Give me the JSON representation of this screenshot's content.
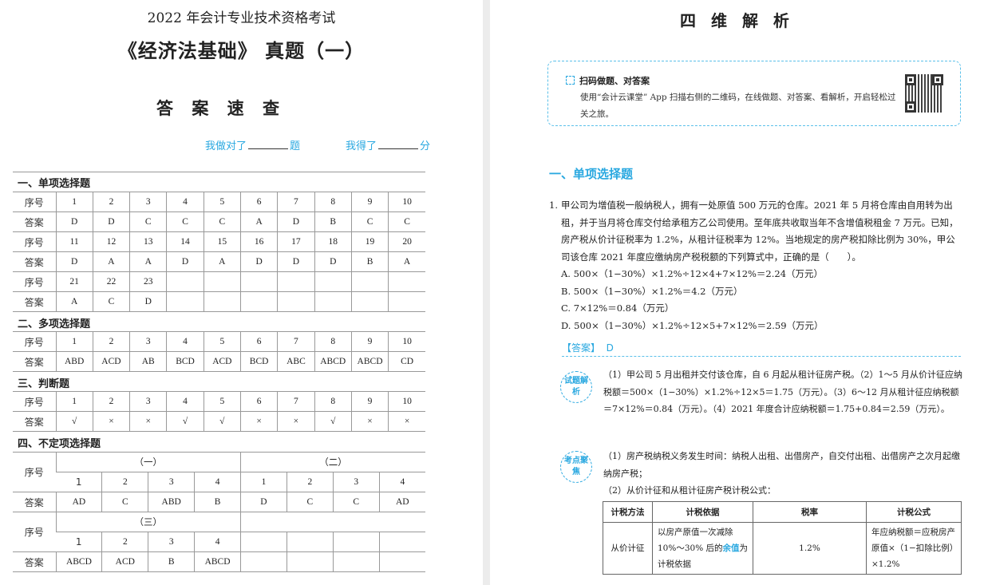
{
  "left_page": {
    "exam_subtitle": "2022 年会计专业技术资格考试",
    "title": "《经济法基础》 真题（一）",
    "section_title": "答 案 速 查",
    "score_correct_prefix": "我做对了",
    "score_correct_suffix": "题",
    "score_points_prefix": "我得了",
    "score_points_suffix": "分",
    "row_label_no": "序号",
    "row_label_answer": "答案",
    "single_choice": {
      "heading": "一、单项选择题",
      "rows": [
        {
          "nos": [
            "1",
            "2",
            "3",
            "4",
            "5",
            "6",
            "7",
            "8",
            "9",
            "10"
          ],
          "answers": [
            "D",
            "D",
            "C",
            "C",
            "C",
            "A",
            "D",
            "B",
            "C",
            "C"
          ]
        },
        {
          "nos": [
            "11",
            "12",
            "13",
            "14",
            "15",
            "16",
            "17",
            "18",
            "19",
            "20"
          ],
          "answers": [
            "D",
            "A",
            "A",
            "D",
            "A",
            "D",
            "D",
            "D",
            "B",
            "A"
          ]
        },
        {
          "nos": [
            "21",
            "22",
            "23",
            "",
            "",
            "",
            "",
            "",
            "",
            ""
          ],
          "answers": [
            "A",
            "C",
            "D",
            "",
            "",
            "",
            "",
            "",
            "",
            ""
          ]
        }
      ]
    },
    "multiple_choice": {
      "heading": "二、多项选择题",
      "nos": [
        "1",
        "2",
        "3",
        "4",
        "5",
        "6",
        "7",
        "8",
        "9",
        "10"
      ],
      "answers": [
        "ABD",
        "ACD",
        "AB",
        "BCD",
        "ACD",
        "BCD",
        "ABC",
        "ABCD",
        "ABCD",
        "CD"
      ]
    },
    "true_false": {
      "heading": "三、判断题",
      "nos": [
        "1",
        "2",
        "3",
        "4",
        "5",
        "6",
        "7",
        "8",
        "9",
        "10"
      ],
      "answers": [
        "√",
        "×",
        "×",
        "√",
        "√",
        "×",
        "×",
        "√",
        "×",
        "×"
      ]
    },
    "indefinite_choice": {
      "heading": "四、不定项选择题",
      "groups": [
        {
          "label": "（一）",
          "nos": [
            "1",
            "2",
            "3",
            "4"
          ],
          "answers": [
            "AD",
            "C",
            "ABD",
            "B"
          ]
        },
        {
          "label": "（二）",
          "nos": [
            "1",
            "2",
            "3",
            "4"
          ],
          "answers": [
            "D",
            "C",
            "C",
            "AD"
          ]
        },
        {
          "label": "（三）",
          "nos": [
            "1",
            "2",
            "3",
            "4"
          ],
          "answers": [
            "ABCD",
            "ACD",
            "B",
            "ABCD"
          ]
        }
      ]
    }
  },
  "right_page": {
    "title": "四 维 解 析",
    "scan_box": {
      "heading": "扫码做题、对答案",
      "text": "使用“会计云课堂” App 扫描右侧的二维码，在线做题、对答案、看解析，开启轻松过关之旅。"
    },
    "section_heading": "一、单项选择题",
    "question": {
      "number": "1.",
      "stem": "甲公司为增值税一般纳税人，拥有一处原值 500 万元的仓库。2021 年 5 月将仓库由自用转为出租，并于当月将仓库交付给承租方乙公司使用。至年底共收取当年不含增值税租金 7 万元。已知，房产税从价计征税率为 1.2%，从租计征税率为 12%。当地规定的房产税扣除比例为 30%，甲公司该仓库 2021 年度应缴纳房产税税额的下列算式中，正确的是（　　）。",
      "options": [
        "A. 500×（1−30%）×1.2%÷12×4+7×12%＝2.24（万元）",
        "B. 500×（1−30%）×1.2%＝4.2（万元）",
        "C. 7×12%＝0.84（万元）",
        "D. 500×（1−30%）×1.2%÷12×5+7×12%＝2.59（万元）"
      ],
      "answer_label": "【答案】",
      "answer": "D"
    },
    "analysis": {
      "badge": "试题解析",
      "text": "（1）甲公司 5 月出租并交付该仓库，自 6 月起从租计征房产税。（2）1～5 月从价计征应纳税额＝500×（1−30%）×1.2%÷12×5＝1.75（万元）。（3）6～12 月从租计征应纳税额＝7×12%＝0.84（万元）。（4）2021 年度合计应纳税额＝1.75+0.84＝2.59（万元）。"
    },
    "focus": {
      "badge": "考点聚焦",
      "point1": "（1）房产税纳税义务发生时间：纳税人出租、出借房产，自交付出租、出借房产之次月起缴纳房产税；",
      "point2": "（2）从价计征和从租计征房产税计税公式：",
      "table": {
        "headers": [
          "计税方法",
          "计税依据",
          "税率",
          "计税公式"
        ],
        "rows": [
          {
            "method": "从价计征",
            "basis_pre": "以房产原值一次减除 10%～30% 后的",
            "basis_highlight": "余值",
            "basis_post": "为计税依据",
            "rate": "1.2%",
            "formula": "年应纳税额＝应税房产原值×（1−扣除比例）×1.2%"
          }
        ]
      }
    }
  },
  "colors": {
    "accent": "#29a8e0"
  }
}
